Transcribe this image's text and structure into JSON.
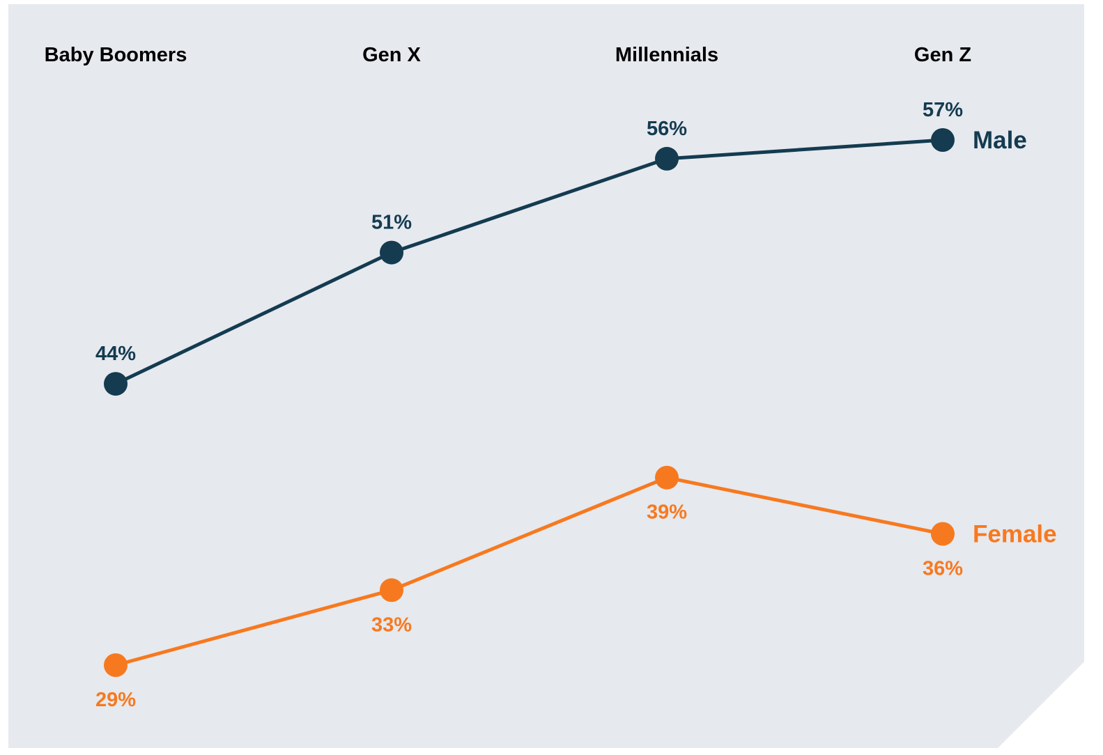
{
  "chart_data": {
    "type": "line",
    "categories": [
      "Baby Boomers",
      "Gen X",
      "Millennials",
      "Gen Z"
    ],
    "ylim": [
      25,
      60
    ],
    "grid": false,
    "series": [
      {
        "name": "Male",
        "color": "#143b50",
        "values": [
          44,
          51,
          56,
          57
        ],
        "labels": [
          "44%",
          "51%",
          "56%",
          "57%"
        ],
        "label_position": "above"
      },
      {
        "name": "Female",
        "color": "#f7791f",
        "values": [
          29,
          33,
          39,
          36
        ],
        "labels": [
          "29%",
          "33%",
          "39%",
          "36%"
        ],
        "label_position": "below"
      }
    ]
  },
  "style": {
    "background": "#e6e9ee",
    "text_color": "#000000"
  }
}
